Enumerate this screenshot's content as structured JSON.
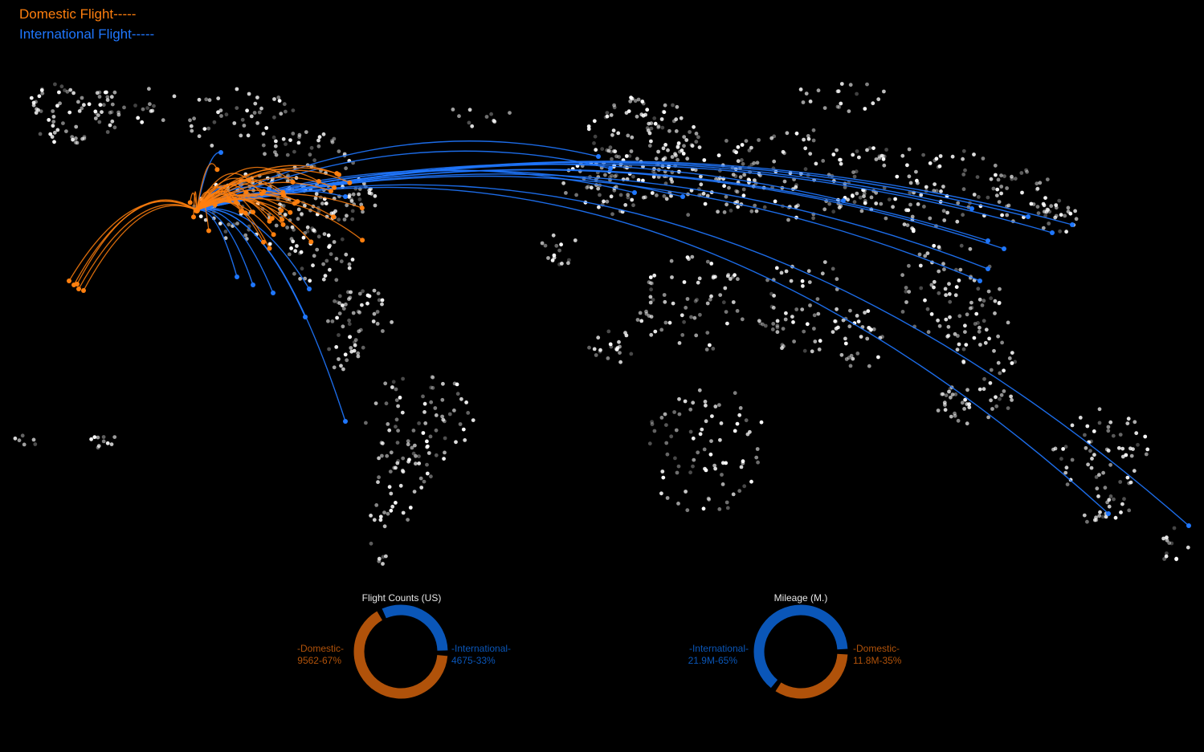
{
  "colors": {
    "background": "#000000",
    "domestic": "#ff7f0e",
    "international": "#1f77ff",
    "domestic_dark": "#b0520a",
    "international_dark": "#0a56b8",
    "airport": "#ffffff"
  },
  "legend": {
    "domestic": "Domestic Flight-----",
    "international": "International Flight-----"
  },
  "flight_counts": {
    "title": "Flight Counts (US)",
    "domestic_label": "-Domestic-",
    "domestic_value": "9562-67%",
    "domestic_fraction": 0.67,
    "international_label": "-International-",
    "international_value": "4675-33%",
    "international_fraction": 0.33
  },
  "mileage": {
    "title": "Mileage (M.)",
    "international_label": "-International-",
    "international_value": "21.9M-65%",
    "international_fraction": 0.65,
    "domestic_label": "-Domestic-",
    "domestic_value": "11.8M-35%",
    "domestic_fraction": 0.35
  }
}
